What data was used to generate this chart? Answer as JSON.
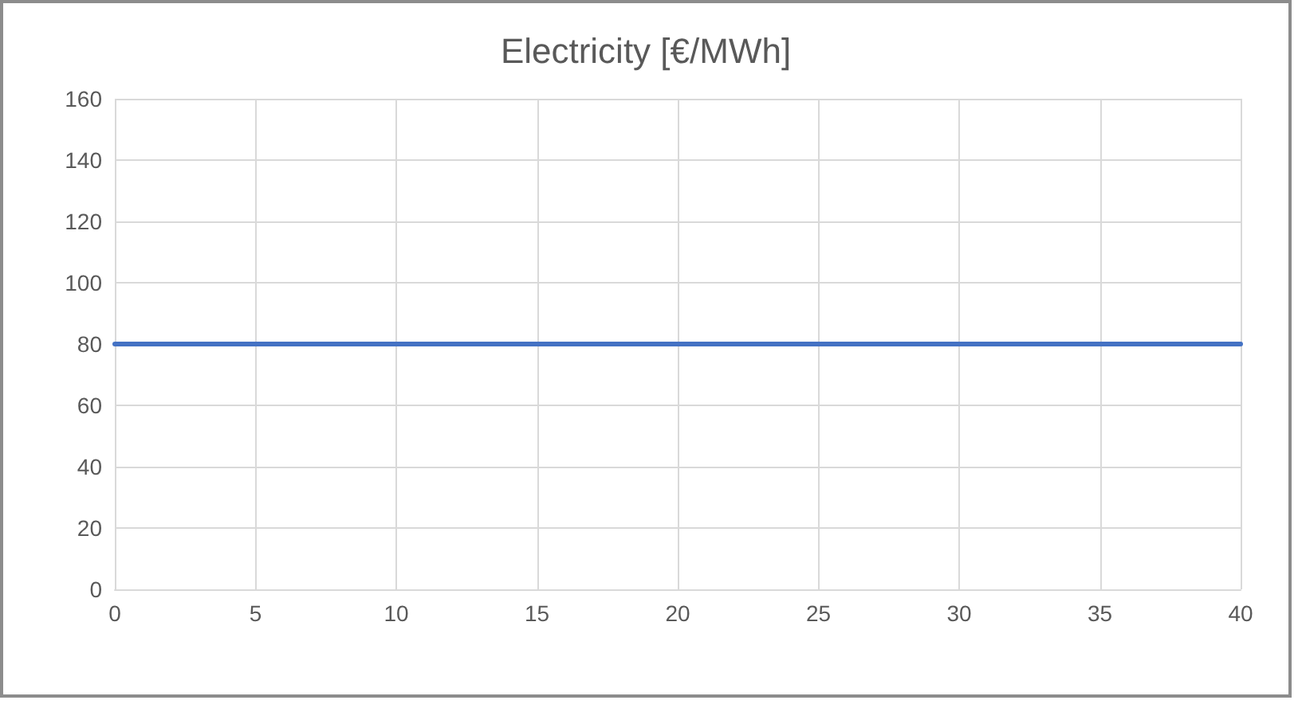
{
  "chart_data": {
    "type": "line",
    "title": "Electricity [€/MWh]",
    "x": [
      0,
      40
    ],
    "series": [
      {
        "color": "#4472c4",
        "values": [
          80,
          80
        ]
      }
    ],
    "xlim": [
      0,
      40
    ],
    "xticks": [
      0,
      5,
      10,
      15,
      20,
      25,
      30,
      35,
      40
    ],
    "ylim": [
      0,
      160
    ],
    "yticks": [
      0,
      20,
      40,
      60,
      80,
      100,
      120,
      140,
      160
    ],
    "grid": true,
    "marker": "none",
    "line_style": "solid"
  }
}
